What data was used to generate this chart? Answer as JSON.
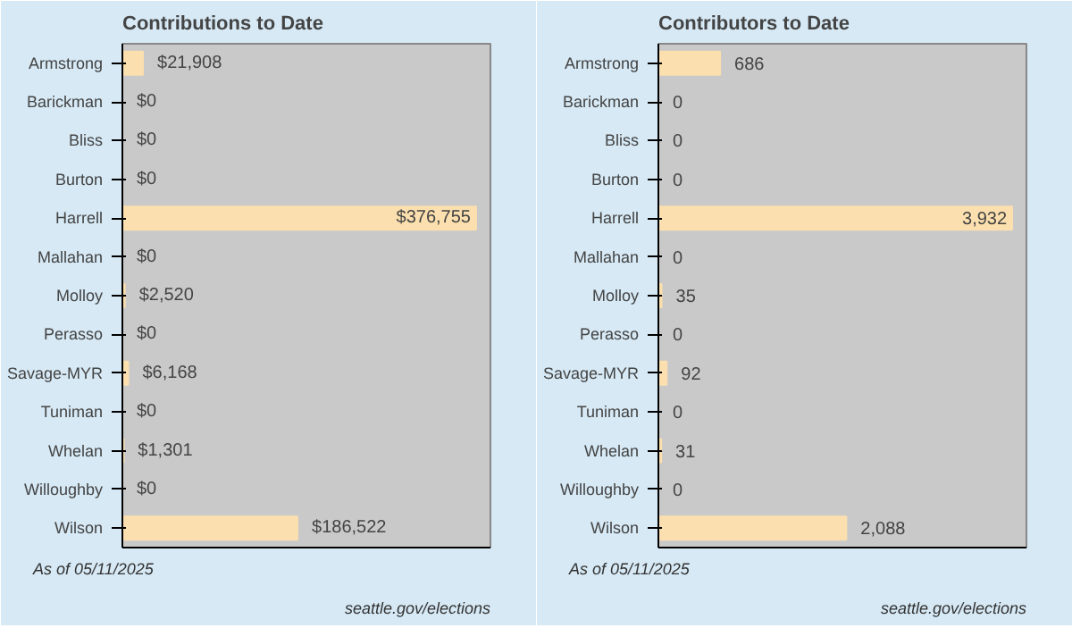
{
  "chart_data": [
    {
      "type": "bar",
      "orientation": "horizontal",
      "title": "Contributions to Date",
      "categories": [
        "Armstrong",
        "Barickman",
        "Bliss",
        "Burton",
        "Harrell",
        "Mallahan",
        "Molloy",
        "Perasso",
        "Savage-MYR",
        "Tuniman",
        "Whelan",
        "Willoughby",
        "Wilson"
      ],
      "values": [
        21908,
        0,
        0,
        0,
        376755,
        0,
        2520,
        0,
        6168,
        0,
        1301,
        0,
        186522
      ],
      "value_labels": [
        "$21,908",
        "$0",
        "$0",
        "$0",
        "$376,755",
        "$0",
        "$2,520",
        "$0",
        "$6,168",
        "$0",
        "$1,301",
        "$0",
        "$186,522"
      ],
      "color": "#fbdfae",
      "xlim": [
        0,
        392000
      ],
      "tick_labels": "y",
      "grid": false,
      "annotations": [
        "As of 05/11/2025",
        "seattle.gov/elections"
      ]
    },
    {
      "type": "bar",
      "orientation": "horizontal",
      "title": "Contributors to Date",
      "categories": [
        "Armstrong",
        "Barickman",
        "Bliss",
        "Burton",
        "Harrell",
        "Mallahan",
        "Molloy",
        "Perasso",
        "Savage-MYR",
        "Tuniman",
        "Whelan",
        "Willoughby",
        "Wilson"
      ],
      "values": [
        686,
        0,
        0,
        0,
        3932,
        0,
        35,
        0,
        92,
        0,
        31,
        0,
        2088
      ],
      "value_labels": [
        "686",
        "0",
        "0",
        "0",
        "3,932",
        "0",
        "35",
        "0",
        "92",
        "0",
        "31",
        "0",
        "2,088"
      ],
      "color": "#fbdfae",
      "xlim": [
        0,
        4090
      ],
      "tick_labels": "y",
      "grid": false,
      "annotations": [
        "As of 05/11/2025",
        "seattle.gov/elections"
      ]
    }
  ]
}
